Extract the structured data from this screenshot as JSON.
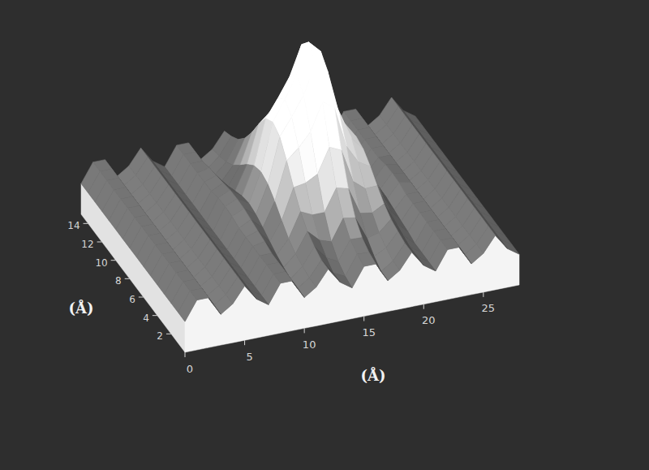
{
  "chart_data": {
    "type": "surface",
    "xlabel": "(Å)",
    "ylabel": "(Å)",
    "x": [
      0,
      1,
      2,
      3,
      4,
      5,
      6,
      7,
      8,
      9,
      10,
      11,
      12,
      13,
      14,
      15,
      16,
      17,
      18,
      19,
      20,
      21,
      22,
      23,
      24,
      25,
      26,
      27,
      28
    ],
    "y": [
      0,
      1,
      2,
      3,
      4,
      5,
      6,
      7,
      8,
      9,
      10,
      11,
      12,
      13,
      14,
      15
    ],
    "z": [
      [
        0.03,
        0.41,
        0.41,
        0.03,
        0.19,
        0.5,
        0.19,
        0.03,
        0.41,
        0.41,
        0.03,
        0.19,
        0.5,
        0.19,
        0.03,
        0.41,
        0.41,
        0.03,
        0.19,
        0.5,
        0.19,
        0.03,
        0.41,
        0.41,
        0.03,
        0.19,
        0.5,
        0.19,
        0.03
      ],
      [
        0.03,
        0.41,
        0.41,
        0.03,
        0.19,
        0.5,
        0.19,
        0.03,
        0.41,
        0.41,
        0.03,
        0.19,
        0.5,
        0.19,
        0.08,
        0.47,
        0.46,
        0.03,
        0.19,
        0.5,
        0.19,
        0.03,
        0.41,
        0.41,
        0.03,
        0.19,
        0.5,
        0.19,
        0.03
      ],
      [
        0.03,
        0.41,
        0.41,
        0.03,
        0.19,
        0.5,
        0.19,
        0.03,
        0.41,
        0.41,
        0.03,
        0.24,
        0.58,
        0.31,
        0.19,
        0.58,
        0.57,
        0.15,
        0.27,
        0.55,
        0.19,
        0.03,
        0.41,
        0.41,
        0.03,
        0.19,
        0.5,
        0.19,
        0.03
      ],
      [
        0.03,
        0.41,
        0.41,
        0.03,
        0.19,
        0.5,
        0.19,
        0.03,
        0.41,
        0.41,
        0.08,
        0.3,
        0.7,
        0.48,
        0.4,
        0.82,
        0.78,
        0.32,
        0.39,
        0.61,
        0.24,
        0.03,
        0.41,
        0.41,
        0.03,
        0.19,
        0.5,
        0.19,
        0.03
      ],
      [
        0.03,
        0.41,
        0.41,
        0.03,
        0.19,
        0.5,
        0.19,
        0.03,
        0.41,
        0.46,
        0.14,
        0.42,
        0.91,
        0.8,
        0.8,
        1.24,
        1.18,
        0.64,
        0.6,
        0.73,
        0.3,
        0.08,
        0.41,
        0.41,
        0.03,
        0.19,
        0.5,
        0.19,
        0.03
      ],
      [
        0.03,
        0.41,
        0.41,
        0.03,
        0.19,
        0.5,
        0.19,
        0.03,
        0.41,
        0.49,
        0.23,
        0.6,
        1.21,
        1.25,
        1.38,
        1.87,
        1.76,
        1.09,
        0.9,
        0.91,
        0.39,
        0.11,
        0.41,
        0.41,
        0.03,
        0.19,
        0.5,
        0.19,
        0.03
      ],
      [
        0.03,
        0.41,
        0.41,
        0.03,
        0.19,
        0.5,
        0.19,
        0.03,
        0.41,
        0.53,
        0.32,
        0.8,
        1.56,
        1.77,
        2.04,
        2.59,
        2.42,
        1.61,
        1.25,
        1.11,
        0.48,
        0.15,
        0.41,
        0.41,
        0.03,
        0.19,
        0.5,
        0.19,
        0.03
      ],
      [
        0.03,
        0.41,
        0.41,
        0.03,
        0.19,
        0.5,
        0.19,
        0.03,
        0.46,
        0.57,
        0.4,
        0.96,
        1.85,
        2.2,
        2.59,
        3.18,
        2.97,
        2.04,
        1.54,
        1.27,
        0.56,
        0.19,
        0.46,
        0.41,
        0.03,
        0.19,
        0.5,
        0.19,
        0.03
      ],
      [
        0.03,
        0.41,
        0.41,
        0.03,
        0.19,
        0.5,
        0.19,
        0.03,
        0.47,
        0.58,
        0.44,
        1.02,
        1.96,
        2.37,
        2.8,
        3.41,
        3.18,
        2.21,
        1.65,
        1.33,
        0.6,
        0.2,
        0.47,
        0.41,
        0.03,
        0.19,
        0.5,
        0.19,
        0.03
      ],
      [
        0.03,
        0.41,
        0.41,
        0.03,
        0.19,
        0.5,
        0.19,
        0.03,
        0.46,
        0.57,
        0.4,
        0.96,
        1.85,
        2.2,
        2.59,
        3.18,
        2.97,
        2.04,
        1.54,
        1.27,
        0.56,
        0.19,
        0.46,
        0.41,
        0.03,
        0.19,
        0.5,
        0.19,
        0.03
      ],
      [
        0.03,
        0.41,
        0.41,
        0.03,
        0.19,
        0.5,
        0.19,
        0.03,
        0.41,
        0.53,
        0.32,
        0.8,
        1.56,
        1.77,
        2.04,
        2.59,
        2.42,
        1.61,
        1.25,
        1.11,
        0.48,
        0.15,
        0.41,
        0.41,
        0.03,
        0.19,
        0.5,
        0.19,
        0.03
      ],
      [
        0.03,
        0.41,
        0.41,
        0.03,
        0.19,
        0.5,
        0.19,
        0.03,
        0.41,
        0.49,
        0.23,
        0.6,
        1.21,
        1.25,
        1.38,
        1.87,
        1.76,
        1.09,
        0.9,
        0.91,
        0.39,
        0.11,
        0.41,
        0.41,
        0.03,
        0.19,
        0.5,
        0.19,
        0.03
      ],
      [
        0.03,
        0.41,
        0.41,
        0.03,
        0.19,
        0.5,
        0.19,
        0.03,
        0.41,
        0.46,
        0.14,
        0.42,
        0.91,
        0.8,
        0.8,
        1.24,
        1.18,
        0.64,
        0.6,
        0.73,
        0.3,
        0.08,
        0.41,
        0.41,
        0.03,
        0.19,
        0.5,
        0.19,
        0.03
      ],
      [
        0.03,
        0.41,
        0.41,
        0.03,
        0.19,
        0.5,
        0.19,
        0.03,
        0.41,
        0.41,
        0.08,
        0.3,
        0.7,
        0.48,
        0.4,
        0.82,
        0.78,
        0.32,
        0.39,
        0.61,
        0.24,
        0.03,
        0.41,
        0.41,
        0.03,
        0.19,
        0.5,
        0.19,
        0.03
      ],
      [
        0.03,
        0.41,
        0.41,
        0.03,
        0.19,
        0.5,
        0.19,
        0.03,
        0.41,
        0.41,
        0.03,
        0.24,
        0.58,
        0.31,
        0.19,
        0.58,
        0.57,
        0.15,
        0.27,
        0.55,
        0.19,
        0.03,
        0.41,
        0.41,
        0.03,
        0.19,
        0.5,
        0.19,
        0.03
      ],
      [
        0.03,
        0.41,
        0.41,
        0.03,
        0.19,
        0.5,
        0.19,
        0.03,
        0.41,
        0.41,
        0.03,
        0.19,
        0.5,
        0.19,
        0.08,
        0.47,
        0.46,
        0.03,
        0.19,
        0.5,
        0.19,
        0.03,
        0.41,
        0.41,
        0.03,
        0.19,
        0.5,
        0.19,
        0.03
      ]
    ],
    "xlim": [
      0,
      28
    ],
    "ylim": [
      0,
      15
    ],
    "xticks": [
      0,
      5,
      10,
      15,
      20,
      25
    ],
    "yticks": [
      2,
      4,
      6,
      8,
      10,
      12,
      14
    ]
  }
}
